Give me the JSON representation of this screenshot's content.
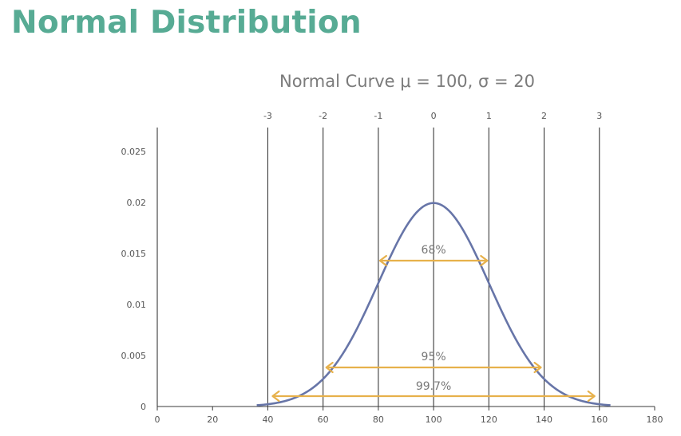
{
  "page": {
    "title": "Normal Distribution"
  },
  "chart_data": {
    "type": "line",
    "title": "Normal Curve μ = 100, σ = 20",
    "mean": 100,
    "sd": 20,
    "curve_color": "#6775a8",
    "arrow_color": "#e7b14b",
    "x_ticks": [
      0,
      20,
      40,
      60,
      80,
      100,
      120,
      140,
      160,
      180
    ],
    "y_ticks": [
      0,
      0.005,
      0.01,
      0.015,
      0.02,
      0.025
    ],
    "y_tick_labels": [
      "0",
      "0.005",
      "0.01",
      "0.015",
      "0.02",
      "0.025"
    ],
    "xlim": [
      0,
      180
    ],
    "ylim": [
      0,
      0.025
    ],
    "sigma_lines": [
      {
        "label": "-3",
        "x": 40
      },
      {
        "label": "-2",
        "x": 60
      },
      {
        "label": "-1",
        "x": 80
      },
      {
        "label": "0",
        "x": 100
      },
      {
        "label": "1",
        "x": 120
      },
      {
        "label": "2",
        "x": 140
      },
      {
        "label": "3",
        "x": 160
      }
    ],
    "intervals": [
      {
        "label": "68%",
        "from": 80,
        "to": 120
      },
      {
        "label": "95%",
        "from": 60,
        "to": 140
      },
      {
        "label": "99.7%",
        "from": 40,
        "to": 160
      }
    ]
  }
}
